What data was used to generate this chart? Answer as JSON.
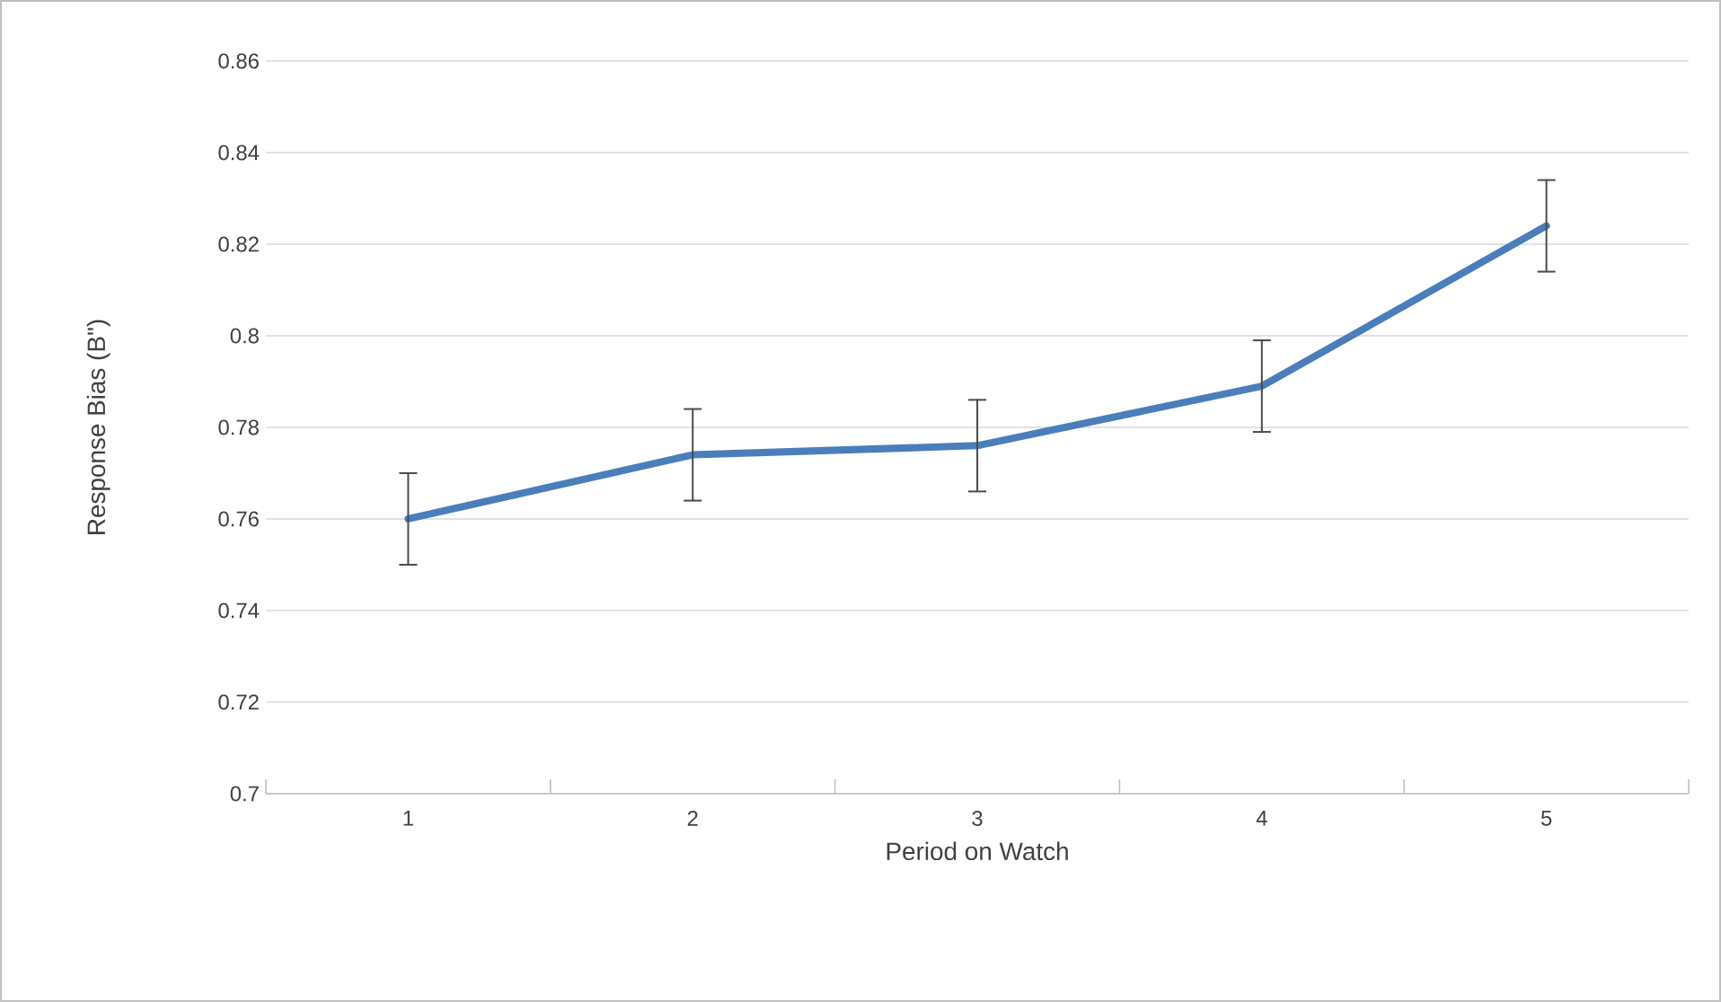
{
  "chart_data": {
    "type": "line",
    "xlabel": "Period on Watch",
    "ylabel": "Response Bias (B\")",
    "categories": [
      "1",
      "2",
      "3",
      "4",
      "5"
    ],
    "series": [
      {
        "color": "#4a7ebb",
        "values": [
          0.76,
          0.774,
          0.776,
          0.789,
          0.824
        ],
        "errors": [
          0.01,
          0.01,
          0.01,
          0.01,
          0.01
        ]
      }
    ],
    "ylim": [
      0.7,
      0.86
    ],
    "yticks": [
      0.7,
      0.72,
      0.74,
      0.76,
      0.78,
      0.8,
      0.82,
      0.84,
      0.86
    ],
    "grid": "y",
    "marker": "none",
    "line_style": "solid"
  }
}
